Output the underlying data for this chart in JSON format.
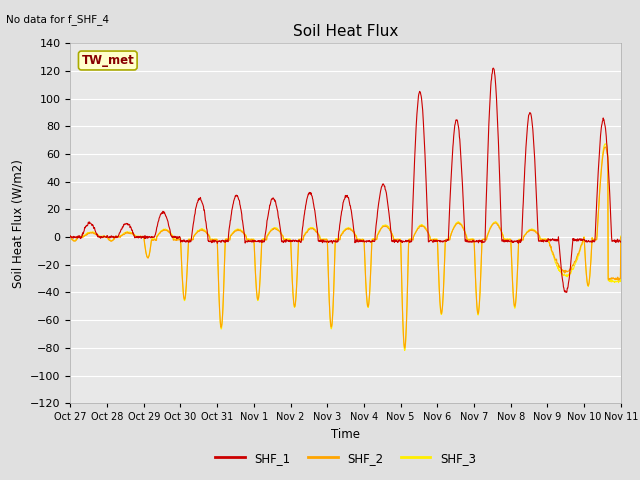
{
  "title": "Soil Heat Flux",
  "subtitle": "No data for f_SHF_4",
  "ylabel": "Soil Heat Flux (W/m2)",
  "xlabel": "Time",
  "legend_labels": [
    "SHF_1",
    "SHF_2",
    "SHF_3"
  ],
  "legend_colors": [
    "#cc0000",
    "#ffa500",
    "#ffee00"
  ],
  "box_label": "TW_met",
  "box_facecolor": "#ffffcc",
  "box_edgecolor": "#aaaa00",
  "ylim": [
    -120,
    140
  ],
  "yticks": [
    -120,
    -100,
    -80,
    -60,
    -40,
    -20,
    0,
    20,
    40,
    60,
    80,
    100,
    120,
    140
  ],
  "xtick_labels": [
    "Oct 27",
    "Oct 28",
    "Oct 29",
    "Oct 30",
    "Oct 31",
    "Nov 1",
    "Nov 2",
    "Nov 3",
    "Nov 4",
    "Nov 5",
    "Nov 6",
    "Nov 7",
    "Nov 8",
    "Nov 9",
    "Nov 10",
    "Nov 11"
  ],
  "background_color": "#e0e0e0",
  "plot_bg_color": "#e8e8e8",
  "grid_color": "#ffffff",
  "color_shf1": "#cc0000",
  "color_shf2": "#ffa500",
  "color_shf3": "#ffee00",
  "n_days": 15,
  "pts_per_day": 96
}
